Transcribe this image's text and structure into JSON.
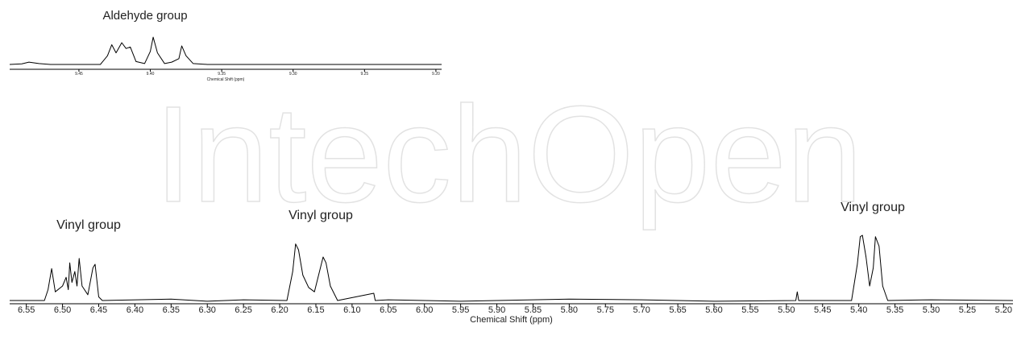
{
  "watermark": "IntechOpen",
  "chart_data": [
    {
      "type": "line",
      "x_label": "Chemical Shift (ppm)",
      "annotations": [
        "Aldehyde group"
      ],
      "color": "#000000",
      "xlim": [
        9.4985,
        9.196
      ],
      "ylim": [
        0,
        100
      ],
      "xticks": [
        9.45,
        {
          "value": 9.4,
          "label": "9.40"
        },
        9.35,
        {
          "value": 9.3,
          "label": "9.30"
        },
        9.25,
        {
          "value": 9.2,
          "label": "9.20"
        }
      ],
      "x": [
        9.4985,
        9.49,
        9.485,
        9.478,
        9.47,
        9.435,
        9.43,
        9.427,
        9.424,
        9.42,
        9.417,
        9.414,
        9.41,
        9.404,
        9.4,
        9.398,
        9.395,
        9.39,
        9.385,
        9.38,
        9.378,
        9.375,
        9.37,
        9.36,
        9.196
      ],
      "values": [
        0,
        2,
        8,
        3,
        0,
        0,
        30,
        68,
        40,
        75,
        55,
        60,
        10,
        3,
        45,
        94,
        40,
        3,
        8,
        20,
        64,
        30,
        3,
        0,
        0
      ]
    },
    {
      "type": "line",
      "x_label": "Chemical Shift (ppm)",
      "annotations": [
        "Vinyl group",
        "Vinyl group",
        "Vinyl group"
      ],
      "color": "#000000",
      "xlim": [
        6.573,
        5.187
      ],
      "ylim": [
        0,
        100
      ],
      "xticks": [
        6.55,
        {
          "value": 6.5,
          "label": "6.50"
        },
        6.45,
        {
          "value": 6.4,
          "label": "6.40"
        },
        6.35,
        {
          "value": 6.3,
          "label": "6.30"
        },
        6.25,
        {
          "value": 6.2,
          "label": "6.20"
        },
        6.15,
        {
          "value": 6.1,
          "label": "6.10"
        },
        6.05,
        {
          "value": 6,
          "label": "6.00"
        },
        5.95,
        {
          "value": 5.9,
          "label": "5.90"
        },
        5.85,
        {
          "value": 5.8,
          "label": "5.80"
        },
        5.75,
        {
          "value": 5.7,
          "label": "5.70"
        },
        5.65,
        {
          "value": 5.6,
          "label": "5.60"
        },
        5.55,
        {
          "value": 5.5,
          "label": "5.50"
        },
        5.45,
        {
          "value": 5.4,
          "label": "5.40"
        },
        5.35,
        {
          "value": 5.3,
          "label": "5.30"
        },
        5.25,
        {
          "value": 5.2,
          "label": "5.20"
        }
      ],
      "x": [
        6.573,
        6.525,
        6.52,
        6.515,
        6.51,
        6.5,
        6.495,
        6.492,
        6.49,
        6.487,
        6.483,
        6.48,
        6.477,
        6.473,
        6.465,
        6.458,
        6.455,
        6.45,
        6.445,
        6.35,
        6.3,
        6.25,
        6.19,
        6.182,
        6.178,
        6.174,
        6.168,
        6.16,
        6.152,
        6.145,
        6.14,
        6.136,
        6.13,
        6.12,
        6.07,
        6.068,
        6.05,
        5.95,
        5.8,
        5.7,
        5.6,
        5.487,
        5.485,
        5.483,
        5.41,
        5.402,
        5.398,
        5.395,
        5.39,
        5.385,
        5.38,
        5.377,
        5.372,
        5.367,
        5.36,
        5.3,
        5.187
      ],
      "values": [
        0,
        0,
        15,
        44,
        12,
        20,
        32,
        15,
        52,
        25,
        40,
        20,
        58,
        20,
        8,
        45,
        50,
        5,
        0,
        2,
        -1,
        1,
        0,
        40,
        78,
        70,
        35,
        18,
        12,
        40,
        60,
        52,
        20,
        0,
        10,
        0,
        1,
        -1,
        2,
        1,
        -1,
        0,
        12,
        0,
        0,
        50,
        88,
        90,
        60,
        20,
        45,
        88,
        75,
        20,
        0,
        1,
        0
      ]
    }
  ]
}
